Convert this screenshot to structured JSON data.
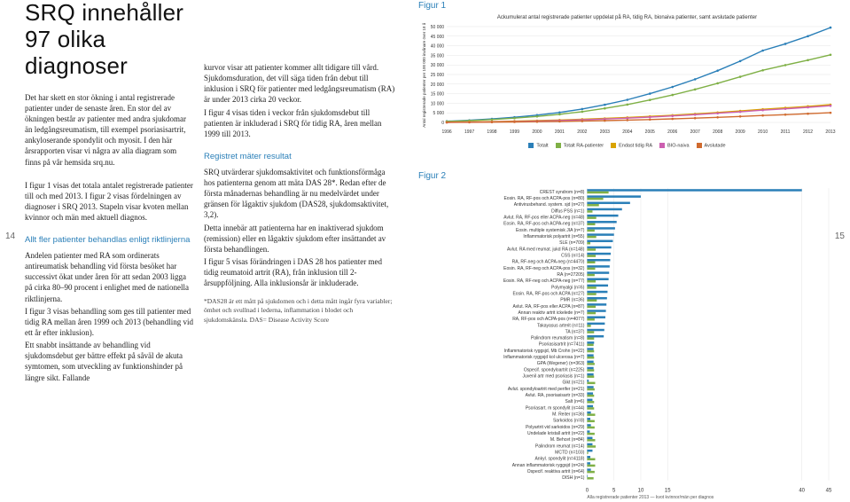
{
  "title": "SRQ innehåller 97 olika diagnoser",
  "left": {
    "p1": "Det har skett en stor ökning i antal registrerade patienter under de senaste åren. En stor del av ökningen består av patienter med andra sjukdomar än ledgångsreumatism, till exempel psoriasisartrit, ankyloserande spondylit och myosit. I den här årsrapporten visar vi några av alla diagram som finns på vår hemsida srq.nu.",
    "p2": "I figur 1 visas det totala antalet registrerade patienter till och med 2013. I figur 2 visas fördelningen av diagnoser i SRQ 2013. Stapeln visar kvoten mellan kvinnor och män med aktuell diagnos.",
    "sub1": "Allt fler patienter behandlas enligt riktlinjerna",
    "p3": "Andelen patienter med RA som ordinerats antireumatisk behandling vid första besöket har successivt ökat under åren för att sedan 2003 ligga på cirka 80–90 procent i enlighet med de nationella riktlinjerna.",
    "p4": "I figur 3 visas behandling som ges till patienter med tidig RA mellan åren 1999 och 2013 (behandling vid ett år efter inklusion).",
    "p5": "Ett snabbt insättande av behandling vid sjukdomsdebut ger bättre effekt på såväl de akuta symtomen, som utveckling av funktionshinder på längre sikt. Fallande"
  },
  "mid": {
    "p1": "kurvor visar att patienter kommer allt tidigare till vård. Sjukdomsduration, det vill säga tiden från debut till inklusion i SRQ för patienter med ledgångsreumatism (RA) är under 2013 cirka 20 veckor.",
    "p2": "I figur 4 visas tiden i veckor från sjukdomsdebut till patienten är inkluderad i SRQ för tidig RA, åren mellan 1999 till 2013.",
    "sub1": "Registret mäter resultat",
    "p3": "SRQ utvärderar sjukdomsaktivitet och funktionsförmåga hos patienterna genom att mäta DAS 28*. Redan efter de första månadernas behandling är nu medelvärdet under gränsen för lågaktiv sjukdom (DAS28, sjukdomsaktivitet, 3,2).",
    "p4": "Detta innebär att patienterna har en inaktiverad sjukdom (remission) eller en lågaktiv sjukdom efter insättandet av första behandlingen.",
    "p5": "I figur 5 visas förändringen i DAS 28 hos patienter med tidig reumatoid artrit (RA), från inklusion till 2-årsuppföljning. Alla inklusionsår är inkluderade.",
    "foot": "*DAS28 är ett mått på sjukdomen och i detta mått ingår fyra variabler; ömhet och svullnad i lederna, inflammation i blodet och sjukdomskänsla. DAS= Disease Activity Score"
  },
  "pagenum_left": "14",
  "pagenum_right": "15",
  "fig1": {
    "label": "Figur 1",
    "title": "Ackumulerat antal registrerade patienter uppdelat på RA, tidig RA, bionaiva patienter, samt avslutade patienter",
    "xticks": [
      "1996",
      "1997",
      "1998",
      "1999",
      "2000",
      "2001",
      "2002",
      "2003",
      "2004",
      "2005",
      "2006",
      "2007",
      "2008",
      "2009",
      "2010",
      "2011",
      "2012",
      "2013"
    ],
    "ylim": [
      0,
      50000
    ],
    "yticks": [
      0,
      5000,
      10000,
      15000,
      20000,
      25000,
      30000,
      35000,
      40000,
      45000,
      50000
    ],
    "ylabel": "Antal registrerade patienter per 100 000 invånare över 18 år",
    "series": [
      {
        "name": "Totalt",
        "color": "#2a7fb8",
        "values": [
          600,
          1100,
          1800,
          2700,
          3800,
          5200,
          7000,
          9200,
          11800,
          15000,
          18500,
          22500,
          27000,
          32000,
          37500,
          41000,
          45000,
          49500
        ]
      },
      {
        "name": "Totalt RA-patienter",
        "color": "#7fb046",
        "values": [
          500,
          900,
          1500,
          2200,
          3100,
          4200,
          5600,
          7300,
          9300,
          11700,
          14300,
          17200,
          20400,
          23800,
          27200,
          29900,
          32500,
          35300
        ]
      },
      {
        "name": "Endast tidig RA",
        "color": "#d9a300",
        "values": [
          100,
          250,
          420,
          650,
          930,
          1260,
          1640,
          2080,
          2580,
          3140,
          3760,
          4440,
          5180,
          5980,
          6840,
          7600,
          8400,
          9240
        ]
      },
      {
        "name": "BIO-naiva",
        "color": "#cc5fb0",
        "values": [
          0,
          120,
          250,
          430,
          670,
          970,
          1330,
          1750,
          2230,
          2770,
          3370,
          4030,
          4750,
          5530,
          6370,
          7100,
          7880,
          8700
        ]
      },
      {
        "name": "Avslutade",
        "color": "#d06a2e",
        "values": [
          0,
          60,
          140,
          240,
          370,
          530,
          720,
          940,
          1200,
          1500,
          1840,
          2220,
          2640,
          3100,
          3600,
          4050,
          4530,
          5040
        ]
      }
    ],
    "legend": [
      "Totalt",
      "Totalt RA-patienter",
      "Endast tidig RA",
      "BIO-naiva",
      "Avslutade"
    ],
    "legend_colors": [
      "#2a7fb8",
      "#7fb046",
      "#d9a300",
      "#cc5fb0",
      "#d06a2e"
    ],
    "grid_color": "#e5e5e5",
    "bg": "#ffffff"
  },
  "fig2": {
    "label": "Figur 2",
    "xlim": [
      0,
      45
    ],
    "xticks": [
      0,
      5,
      10,
      15,
      40,
      45
    ],
    "colors": {
      "f": "#2a7fb8",
      "m": "#7fb046"
    },
    "grid_color": "#e5e5e5",
    "rows": [
      {
        "label": "CREST syndrom (n=8)",
        "f": 40,
        "m": 4
      },
      {
        "label": "Eosin. RA, RF-pos och ACPA-pos (n=80)",
        "f": 10,
        "m": 3
      },
      {
        "label": "Antivirusbehand. system. sjd (n=27)",
        "f": 8,
        "m": 2.2
      },
      {
        "label": "Diffus PSS (n=1)",
        "f": 6.5,
        "m": 1
      },
      {
        "label": "Avlut. RA, RF-pos eller ACPA-neg (n=48)",
        "f": 5.8,
        "m": 1.7
      },
      {
        "label": "Eosin. RA, RF-pos och ACPA-neg (n=37)",
        "f": 5.5,
        "m": 1.5
      },
      {
        "label": "Eosin. multiple systemisk JIA (n=7)",
        "f": 5.2,
        "m": 1.4
      },
      {
        "label": "Inflammatorisk polyartrit (n=55)",
        "f": 5.0,
        "m": 1.7
      },
      {
        "label": "SLE (n=709)",
        "f": 4.8,
        "m": 0.6
      },
      {
        "label": "Avlut. RA med reumat. jukd RA (n=148)",
        "f": 4.5,
        "m": 1.6
      },
      {
        "label": "CSS (n=14)",
        "f": 4.4,
        "m": 1.6
      },
      {
        "label": "RA, RF-neg och ACPA-neg (n=4470)",
        "f": 4.3,
        "m": 1.5
      },
      {
        "label": "Eosin. RA, RF-neg och ACPA-pos (n=32)",
        "f": 4.2,
        "m": 1.5
      },
      {
        "label": "RA (n=27205)",
        "f": 4.1,
        "m": 1.4
      },
      {
        "label": "Eosin. RA, RF-neg och ACPA-neg (n=77)",
        "f": 4.0,
        "m": 1.6
      },
      {
        "label": "Polymyalgi (n=6)",
        "f": 3.9,
        "m": 1.7
      },
      {
        "label": "Eosin. RA, RF-pos och ACPA (n=27)",
        "f": 3.8,
        "m": 1.7
      },
      {
        "label": "PMR (n=36)",
        "f": 3.7,
        "m": 1.8
      },
      {
        "label": "Avlut. RA, RF-pos eller ACPA (n=87)",
        "f": 3.6,
        "m": 1.6
      },
      {
        "label": "Annan reaktiv artrit ickelede (n=7)",
        "f": 3.5,
        "m": 1.6
      },
      {
        "label": "RA, RF-pos och ACPA-pos (n=4077)",
        "f": 3.4,
        "m": 1.4
      },
      {
        "label": "Takayasus arterit (n=11)",
        "f": 3.3,
        "m": 0.7
      },
      {
        "label": "TA (n=37)",
        "f": 3.2,
        "m": 1.3
      },
      {
        "label": "Palindrom reumatism (n=8)",
        "f": 3.1,
        "m": 1.3
      },
      {
        "label": "Psoriasisartrit (n=7411)",
        "f": 1.3,
        "m": 1.2
      },
      {
        "label": "Inflammatorisk ryggsjd, Mb Crohn (n=22)",
        "f": 1.2,
        "m": 1.3
      },
      {
        "label": "Inflammatorisk ryggsjd kol ulcerosa (n=7)",
        "f": 1.2,
        "m": 1.3
      },
      {
        "label": "GPA (Wegener) (n=363)",
        "f": 1.2,
        "m": 1.4
      },
      {
        "label": "Ospecif. spondyloartrit (n=225)",
        "f": 1.2,
        "m": 1.3
      },
      {
        "label": "Juvenil artr med psoriasis (n=1)",
        "f": 1.2,
        "m": 1.3
      },
      {
        "label": "Gikt (n=21)",
        "f": 0.3,
        "m": 1.5
      },
      {
        "label": "Avlut. spondyloartrit med perifer (n=21)",
        "f": 1.2,
        "m": 1.4
      },
      {
        "label": "Avlut. RA, psoriasisartr (n=33)",
        "f": 1.1,
        "m": 1.3
      },
      {
        "label": "Salt (n=6)",
        "f": 1.0,
        "m": 1.3
      },
      {
        "label": "Psoriasart. m spondylit (n=44)",
        "f": 1.1,
        "m": 1.3
      },
      {
        "label": "M. Reiter (n=36)",
        "f": 0.7,
        "m": 1.5
      },
      {
        "label": "Sarkoidos (n=8)",
        "f": 0.6,
        "m": 1.4
      },
      {
        "label": "Polyartrit vid sarkoidos (n=29)",
        "f": 0.7,
        "m": 1.4
      },
      {
        "label": "Undelade kristall artrit (n=22)",
        "f": 0.5,
        "m": 1.4
      },
      {
        "label": "M. Behcet (n=84)",
        "f": 1.0,
        "m": 1.5
      },
      {
        "label": "Palindrom reumat (n=14)",
        "f": 1.0,
        "m": 1.6
      },
      {
        "label": "MCTD (n=103)",
        "f": 1.0,
        "m": 0.2
      },
      {
        "label": "Ankyl. spondylit (n=4118)",
        "f": 0.6,
        "m": 1.5
      },
      {
        "label": "Annan inflammatorisk ryggsjd (n=24)",
        "f": 0.6,
        "m": 1.5
      },
      {
        "label": "Ospecif. reaktiva artrit (n=64)",
        "f": 0.7,
        "m": 1.4
      },
      {
        "label": "DISH (n=1)",
        "f": 0.1,
        "m": 1.2
      }
    ],
    "footnote": "Alla registrerade patienter 2013 — kvot kvinnor/män per diagnos"
  }
}
